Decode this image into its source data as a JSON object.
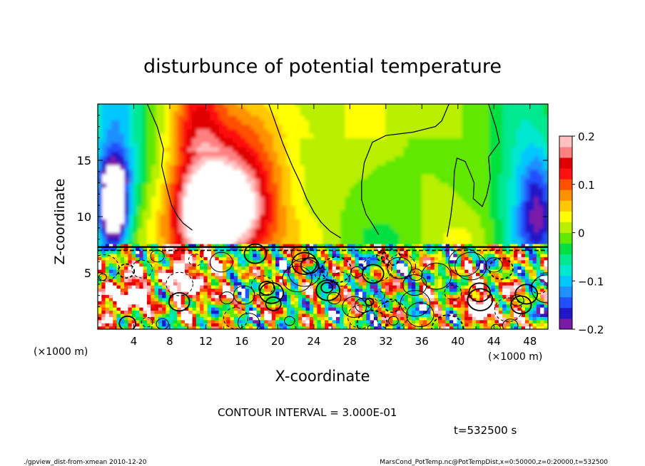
{
  "chart_data": {
    "type": "heatmap",
    "title": "disturbunce of potential temperature",
    "xlabel": "X-coordinate",
    "ylabel": "Z-coordinate",
    "x_unit_left": "(×1000 m)",
    "x_unit_right": "(×1000 m)",
    "xlim": [
      0,
      50
    ],
    "ylim": [
      0,
      20
    ],
    "x_ticks": [
      "4",
      "8",
      "12",
      "16",
      "20",
      "24",
      "28",
      "32",
      "36",
      "40",
      "44",
      "48"
    ],
    "y_ticks": [
      "5",
      "10",
      "15"
    ],
    "colorbar": {
      "range": [
        -0.2,
        0.2
      ],
      "labels": [
        "0.2",
        "0.1",
        "0",
        "−0.1",
        "−0.2"
      ],
      "colors": [
        "#7a1aa8",
        "#2018c8",
        "#2050ff",
        "#1e90ff",
        "#00c8ff",
        "#00e8d0",
        "#00e890",
        "#00e040",
        "#60e800",
        "#b8f000",
        "#ffff00",
        "#ffc800",
        "#ff9000",
        "#ff5000",
        "#ff1010",
        "#e00000",
        "#ff8080",
        "#ffc0c0"
      ]
    },
    "contour_interval_text": "CONTOUR INTERVAL = 3.000E-01",
    "time_text": "t=532500 s",
    "grid": false
  },
  "footer": {
    "left": "./gpview_dist-from-xmean  2010-12-20",
    "right": "MarsCond_PotTemp.nc@PotTempDist,x=0:50000,z=0:20000,t=532500"
  }
}
